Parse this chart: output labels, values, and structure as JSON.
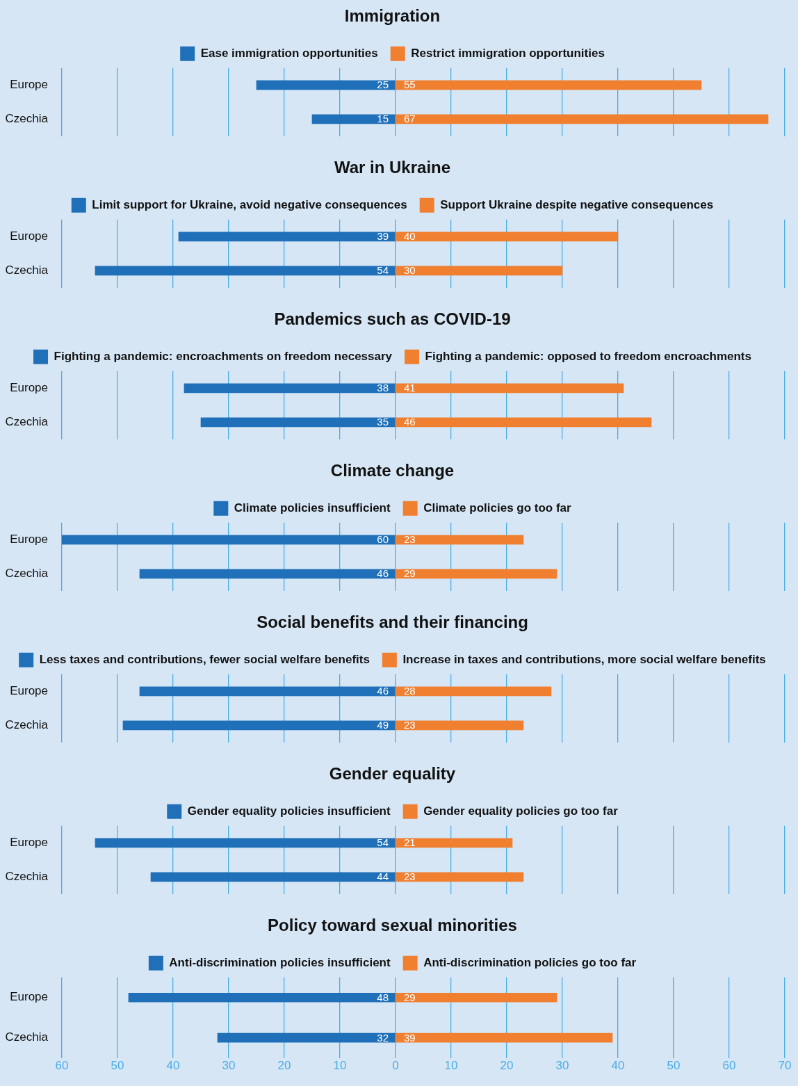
{
  "chart_data": [
    {
      "type": "bar",
      "orientation": "horizontal",
      "title": "Immigration",
      "categories": [
        "Europe",
        "Czechia"
      ],
      "series": [
        {
          "name": "Ease immigration opportunities",
          "color": "#1f70b8",
          "base": [
            -25,
            -15
          ],
          "values": [
            25,
            15
          ]
        },
        {
          "name": "Restrict immigration opportunities",
          "color": "#f07f30",
          "values": [
            55,
            67
          ]
        }
      ],
      "data_labels": true,
      "xlim": [
        -60,
        70
      ],
      "xticks": [
        -60,
        -50,
        -40,
        -30,
        -20,
        -10,
        0,
        10,
        20,
        30,
        40,
        50,
        60,
        70
      ],
      "grid": "x",
      "legend": "top",
      "tick_labels": "y"
    },
    {
      "type": "bar",
      "orientation": "horizontal",
      "title": "War in Ukraine",
      "categories": [
        "Europe",
        "Czechia"
      ],
      "series": [
        {
          "name": "Limit support for Ukraine, avoid negative consequences",
          "color": "#1f70b8",
          "base": [
            -39,
            -54
          ],
          "values": [
            39,
            54
          ]
        },
        {
          "name": "Support Ukraine despite negative consequences",
          "color": "#f07f30",
          "values": [
            40,
            30
          ]
        }
      ],
      "data_labels": true,
      "xlim": [
        -60,
        70
      ],
      "xticks": [
        -60,
        -50,
        -40,
        -30,
        -20,
        -10,
        0,
        10,
        20,
        30,
        40,
        50,
        60,
        70
      ],
      "grid": "x",
      "legend": "top",
      "tick_labels": "y"
    },
    {
      "type": "bar",
      "orientation": "horizontal",
      "title": "Pandemics such as COVID-19",
      "categories": [
        "Europe",
        "Czechia"
      ],
      "series": [
        {
          "name": "Fighting a pandemic: encroachments on freedom necessary",
          "color": "#1f70b8",
          "base": [
            -38,
            -35
          ],
          "values": [
            38,
            35
          ]
        },
        {
          "name": "Fighting a pandemic: opposed to freedom encroachments",
          "color": "#f07f30",
          "values": [
            41,
            46
          ]
        }
      ],
      "data_labels": true,
      "xlim": [
        -60,
        70
      ],
      "xticks": [
        -60,
        -50,
        -40,
        -30,
        -20,
        -10,
        0,
        10,
        20,
        30,
        40,
        50,
        60,
        70
      ],
      "grid": "x",
      "legend": "top",
      "tick_labels": "y"
    },
    {
      "type": "bar",
      "orientation": "horizontal",
      "title": "Climate change",
      "categories": [
        "Europe",
        "Czechia"
      ],
      "series": [
        {
          "name": "Climate policies insufficient",
          "color": "#1f70b8",
          "base": [
            -60,
            -46
          ],
          "values": [
            60,
            46
          ]
        },
        {
          "name": "Climate policies go too far",
          "color": "#f07f30",
          "values": [
            23,
            29
          ]
        }
      ],
      "data_labels": true,
      "xlim": [
        -60,
        70
      ],
      "xticks": [
        -60,
        -50,
        -40,
        -30,
        -20,
        -10,
        0,
        10,
        20,
        30,
        40,
        50,
        60,
        70
      ],
      "grid": "x",
      "legend": "top",
      "tick_labels": "y"
    },
    {
      "type": "bar",
      "orientation": "horizontal",
      "title": "Social benefits and their financing",
      "categories": [
        "Europe",
        "Czechia"
      ],
      "series": [
        {
          "name": "Less taxes and contributions, fewer social welfare benefits",
          "color": "#1f70b8",
          "base": [
            -46,
            -49
          ],
          "values": [
            46,
            49
          ]
        },
        {
          "name": "Increase in taxes and contributions, more social welfare benefits",
          "color": "#f07f30",
          "values": [
            28,
            23
          ]
        }
      ],
      "data_labels": true,
      "xlim": [
        -60,
        70
      ],
      "xticks": [
        -60,
        -50,
        -40,
        -30,
        -20,
        -10,
        0,
        10,
        20,
        30,
        40,
        50,
        60,
        70
      ],
      "grid": "x",
      "legend": "top",
      "tick_labels": "y"
    },
    {
      "type": "bar",
      "orientation": "horizontal",
      "title": "Gender equality",
      "categories": [
        "Europe",
        "Czechia"
      ],
      "series": [
        {
          "name": "Gender equality policies insufficient",
          "color": "#1f70b8",
          "base": [
            -54,
            -44
          ],
          "values": [
            54,
            44
          ]
        },
        {
          "name": "Gender equality policies go too far",
          "color": "#f07f30",
          "values": [
            21,
            23
          ]
        }
      ],
      "data_labels": true,
      "xlim": [
        -60,
        70
      ],
      "xticks": [
        -60,
        -50,
        -40,
        -30,
        -20,
        -10,
        0,
        10,
        20,
        30,
        40,
        50,
        60,
        70
      ],
      "grid": "x",
      "legend": "top",
      "tick_labels": "y"
    },
    {
      "type": "bar",
      "orientation": "horizontal",
      "title": "Policy toward sexual minorities",
      "categories": [
        "Europe",
        "Czechia"
      ],
      "series": [
        {
          "name": "Anti-discrimination policies insufficient",
          "color": "#1f70b8",
          "base": [
            -48,
            -32
          ],
          "values": [
            48,
            32
          ]
        },
        {
          "name": "Anti-discrimination policies go too far",
          "color": "#f07f30",
          "values": [
            29,
            39
          ]
        }
      ],
      "data_labels": true,
      "xlim": [
        -60,
        70
      ],
      "xticks": [
        {
          "value": -60,
          "label": "60"
        },
        {
          "value": -50,
          "label": "50"
        },
        {
          "value": -40,
          "label": "40"
        },
        {
          "value": -30,
          "label": "30"
        },
        {
          "value": -20,
          "label": "20"
        },
        {
          "value": -10,
          "label": "10"
        },
        0,
        10,
        20,
        30,
        40,
        50,
        60,
        70
      ],
      "grid": "x",
      "legend": "top"
    }
  ]
}
